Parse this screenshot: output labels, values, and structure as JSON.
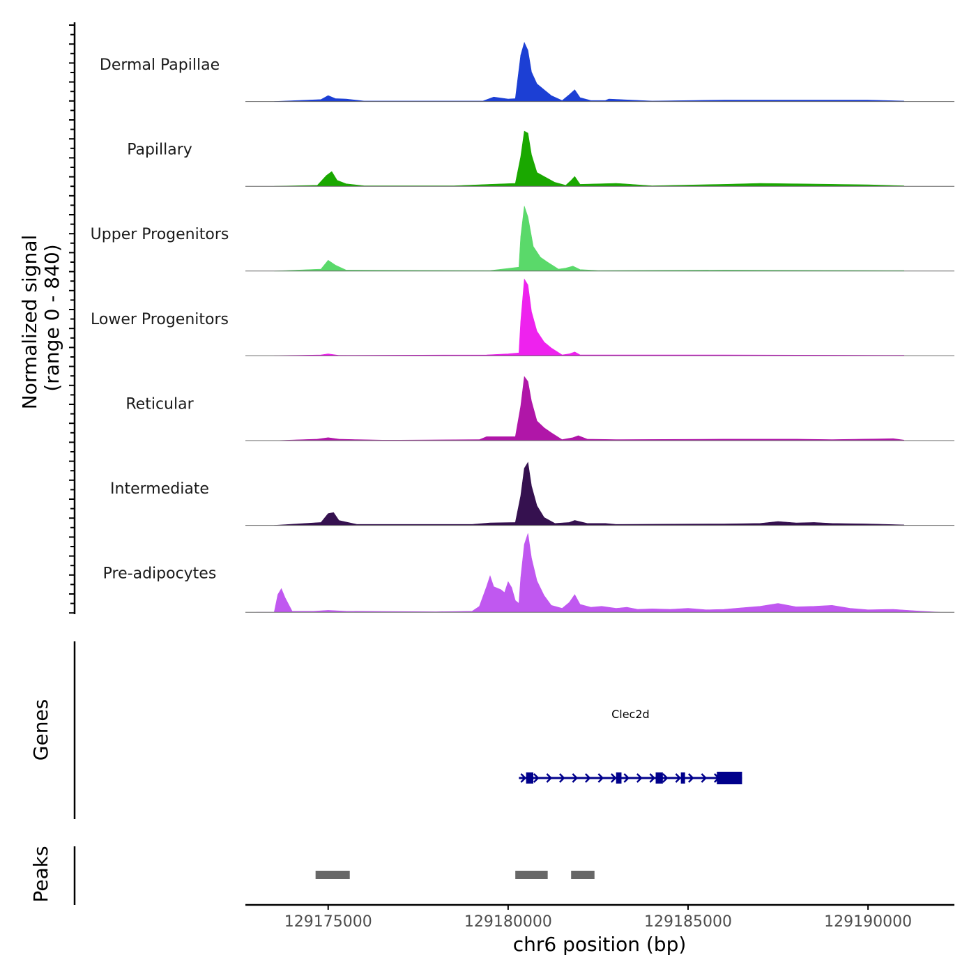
{
  "chart_data": {
    "type": "area",
    "title": "",
    "xlabel": "chr6 position (bp)",
    "ylabel": "Normalized signal",
    "ylabel_range": "(range 0 - 840)",
    "ylim": [
      0,
      840
    ],
    "xlim": [
      129172700,
      129192400
    ],
    "x_ticks": [
      129175000,
      129180000,
      129185000,
      129190000
    ],
    "x_tick_labels": [
      "129175000",
      "129180000",
      "129185000",
      "129190000"
    ],
    "series": [
      {
        "name": "Dermal Papillae",
        "color": "#1c3fd4",
        "points": [
          [
            129173500,
            0
          ],
          [
            129174800,
            20
          ],
          [
            129175000,
            60
          ],
          [
            129175200,
            30
          ],
          [
            129175500,
            25
          ],
          [
            129176000,
            5
          ],
          [
            129179300,
            5
          ],
          [
            129179600,
            45
          ],
          [
            129180000,
            25
          ],
          [
            129180200,
            30
          ],
          [
            129180350,
            470
          ],
          [
            129180450,
            600
          ],
          [
            129180550,
            520
          ],
          [
            129180650,
            300
          ],
          [
            129180800,
            180
          ],
          [
            129181000,
            120
          ],
          [
            129181200,
            60
          ],
          [
            129181500,
            10
          ],
          [
            129181700,
            70
          ],
          [
            129181850,
            120
          ],
          [
            129182000,
            40
          ],
          [
            129182300,
            10
          ],
          [
            129182700,
            10
          ],
          [
            129182800,
            25
          ],
          [
            129184000,
            5
          ],
          [
            129186000,
            15
          ],
          [
            129186500,
            15
          ],
          [
            129188000,
            15
          ],
          [
            129190000,
            15
          ],
          [
            129191000,
            5
          ]
        ]
      },
      {
        "name": "Papillary",
        "color": "#1aa800",
        "points": [
          [
            129173500,
            0
          ],
          [
            129174700,
            10
          ],
          [
            129174950,
            110
          ],
          [
            129175100,
            150
          ],
          [
            129175250,
            60
          ],
          [
            129175500,
            25
          ],
          [
            129176000,
            5
          ],
          [
            129178500,
            5
          ],
          [
            129179500,
            20
          ],
          [
            129180200,
            30
          ],
          [
            129180350,
            300
          ],
          [
            129180450,
            560
          ],
          [
            129180550,
            540
          ],
          [
            129180650,
            320
          ],
          [
            129180800,
            140
          ],
          [
            129181000,
            100
          ],
          [
            129181300,
            40
          ],
          [
            129181600,
            10
          ],
          [
            129181750,
            60
          ],
          [
            129181850,
            100
          ],
          [
            129182000,
            20
          ],
          [
            129183000,
            30
          ],
          [
            129184000,
            5
          ],
          [
            129186000,
            20
          ],
          [
            129187000,
            30
          ],
          [
            129188000,
            25
          ],
          [
            129190000,
            15
          ],
          [
            129191000,
            5
          ]
        ]
      },
      {
        "name": "Upper Progenitors",
        "color": "#5ad96a",
        "points": [
          [
            129173500,
            0
          ],
          [
            129174800,
            20
          ],
          [
            129175000,
            110
          ],
          [
            129175200,
            60
          ],
          [
            129175500,
            10
          ],
          [
            129179500,
            5
          ],
          [
            129180300,
            40
          ],
          [
            129180350,
            350
          ],
          [
            129180450,
            660
          ],
          [
            129180550,
            550
          ],
          [
            129180700,
            250
          ],
          [
            129180900,
            140
          ],
          [
            129181100,
            90
          ],
          [
            129181400,
            20
          ],
          [
            129181600,
            30
          ],
          [
            129181800,
            50
          ],
          [
            129182000,
            15
          ],
          [
            129182500,
            5
          ],
          [
            129186000,
            10
          ],
          [
            129191000,
            5
          ]
        ]
      },
      {
        "name": "Lower Progenitors",
        "color": "#ee22ee",
        "points": [
          [
            129173500,
            0
          ],
          [
            129174800,
            10
          ],
          [
            129175000,
            20
          ],
          [
            129175300,
            5
          ],
          [
            129179400,
            10
          ],
          [
            129180000,
            20
          ],
          [
            129180300,
            30
          ],
          [
            129180350,
            350
          ],
          [
            129180450,
            780
          ],
          [
            129180550,
            720
          ],
          [
            129180650,
            450
          ],
          [
            129180800,
            250
          ],
          [
            129181000,
            140
          ],
          [
            129181200,
            80
          ],
          [
            129181500,
            10
          ],
          [
            129181700,
            20
          ],
          [
            129181850,
            40
          ],
          [
            129182000,
            10
          ],
          [
            129184000,
            10
          ],
          [
            129186000,
            10
          ],
          [
            129191000,
            5
          ]
        ]
      },
      {
        "name": "Reticular",
        "color": "#b016a8",
        "points": [
          [
            129173500,
            0
          ],
          [
            129174700,
            15
          ],
          [
            129175000,
            30
          ],
          [
            129175300,
            15
          ],
          [
            129175800,
            10
          ],
          [
            129176500,
            5
          ],
          [
            129177000,
            5
          ],
          [
            129179200,
            10
          ],
          [
            129179400,
            40
          ],
          [
            129179800,
            40
          ],
          [
            129180200,
            40
          ],
          [
            129180350,
            350
          ],
          [
            129180450,
            650
          ],
          [
            129180550,
            600
          ],
          [
            129180650,
            400
          ],
          [
            129180800,
            200
          ],
          [
            129181000,
            130
          ],
          [
            129181200,
            80
          ],
          [
            129181500,
            10
          ],
          [
            129181800,
            30
          ],
          [
            129181950,
            50
          ],
          [
            129182200,
            15
          ],
          [
            129183000,
            10
          ],
          [
            129186000,
            15
          ],
          [
            129187000,
            15
          ],
          [
            129188000,
            15
          ],
          [
            129189000,
            10
          ],
          [
            129190700,
            20
          ],
          [
            129191000,
            5
          ]
        ]
      },
      {
        "name": "Intermediate",
        "color": "#35114f",
        "points": [
          [
            129173500,
            0
          ],
          [
            129174800,
            30
          ],
          [
            129175000,
            120
          ],
          [
            129175150,
            130
          ],
          [
            129175300,
            50
          ],
          [
            129175800,
            10
          ],
          [
            129176500,
            10
          ],
          [
            129179000,
            10
          ],
          [
            129179500,
            25
          ],
          [
            129180200,
            30
          ],
          [
            129180350,
            300
          ],
          [
            129180450,
            580
          ],
          [
            129180550,
            640
          ],
          [
            129180650,
            400
          ],
          [
            129180800,
            200
          ],
          [
            129181000,
            80
          ],
          [
            129181300,
            20
          ],
          [
            129181700,
            30
          ],
          [
            129181850,
            50
          ],
          [
            129182200,
            20
          ],
          [
            129182700,
            20
          ],
          [
            129183000,
            10
          ],
          [
            129186000,
            15
          ],
          [
            129187000,
            20
          ],
          [
            129187500,
            40
          ],
          [
            129188000,
            25
          ],
          [
            129188500,
            30
          ],
          [
            129189000,
            20
          ],
          [
            129190000,
            15
          ],
          [
            129191000,
            5
          ]
        ]
      },
      {
        "name": "Pre-adipocytes",
        "color": "#c058f0",
        "points": [
          [
            129173000,
            0
          ],
          [
            129173500,
            0
          ],
          [
            129173600,
            180
          ],
          [
            129173700,
            240
          ],
          [
            129173800,
            150
          ],
          [
            129174000,
            10
          ],
          [
            129174600,
            10
          ],
          [
            129175000,
            20
          ],
          [
            129175500,
            10
          ],
          [
            129178000,
            5
          ],
          [
            129179000,
            10
          ],
          [
            129179200,
            60
          ],
          [
            129179400,
            260
          ],
          [
            129179500,
            370
          ],
          [
            129179600,
            260
          ],
          [
            129179800,
            230
          ],
          [
            129179900,
            200
          ],
          [
            129180000,
            310
          ],
          [
            129180100,
            250
          ],
          [
            129180200,
            120
          ],
          [
            129180300,
            90
          ],
          [
            129180350,
            350
          ],
          [
            129180450,
            690
          ],
          [
            129180550,
            800
          ],
          [
            129180650,
            550
          ],
          [
            129180800,
            320
          ],
          [
            129181000,
            170
          ],
          [
            129181200,
            70
          ],
          [
            129181500,
            40
          ],
          [
            129181700,
            100
          ],
          [
            129181850,
            180
          ],
          [
            129182000,
            80
          ],
          [
            129182300,
            50
          ],
          [
            129182600,
            60
          ],
          [
            129183000,
            40
          ],
          [
            129183300,
            50
          ],
          [
            129183600,
            30
          ],
          [
            129184000,
            35
          ],
          [
            129184500,
            30
          ],
          [
            129185000,
            40
          ],
          [
            129185500,
            25
          ],
          [
            129186000,
            30
          ],
          [
            129186500,
            45
          ],
          [
            129187000,
            60
          ],
          [
            129187500,
            90
          ],
          [
            129188000,
            55
          ],
          [
            129188500,
            60
          ],
          [
            129189000,
            70
          ],
          [
            129189500,
            40
          ],
          [
            129190000,
            25
          ],
          [
            129190700,
            30
          ],
          [
            129191500,
            10
          ],
          [
            129192000,
            0
          ]
        ]
      }
    ],
    "genes": [
      {
        "name": "Clec2d",
        "strand": "+",
        "start": 129180300,
        "end": 129186500,
        "exons": [
          [
            129180500,
            129180700
          ],
          [
            129183000,
            129183150
          ],
          [
            129184100,
            129184300
          ],
          [
            129184800,
            129184900
          ],
          [
            129185800,
            129186500
          ]
        ]
      }
    ],
    "peaks_label": "Peaks",
    "genes_label": "Genes",
    "peaks": [
      [
        129174650,
        129175600
      ],
      [
        129180200,
        129181100
      ],
      [
        129181750,
        129182400
      ]
    ]
  }
}
